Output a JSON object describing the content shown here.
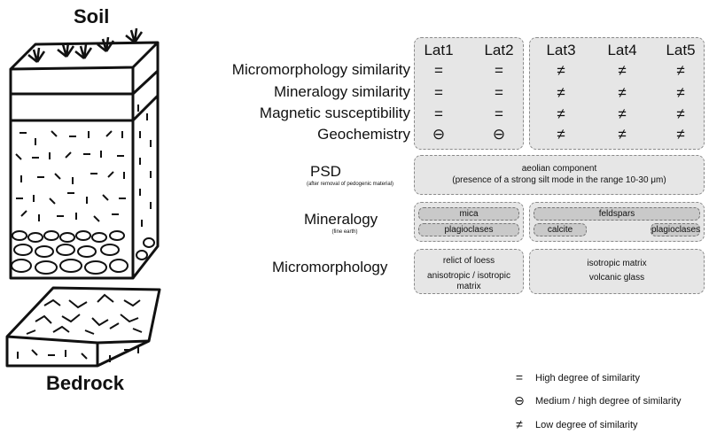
{
  "titles": {
    "soil": "Soil",
    "bedrock": "Bedrock"
  },
  "columns": [
    "Lat1",
    "Lat2",
    "Lat3",
    "Lat4",
    "Lat5"
  ],
  "rows": [
    {
      "label": "Micromorphology similarity",
      "values": [
        "=",
        "=",
        "≠",
        "≠",
        "≠"
      ]
    },
    {
      "label": "Mineralogy similarity",
      "values": [
        "=",
        "=",
        "≠",
        "≠",
        "≠"
      ]
    },
    {
      "label": "Magnetic susceptibility",
      "values": [
        "=",
        "=",
        "≠",
        "≠",
        "≠"
      ]
    },
    {
      "label": "Geochemistry",
      "values": [
        "⊖",
        "⊖",
        "≠",
        "≠",
        "≠"
      ]
    }
  ],
  "psd": {
    "label": "PSD",
    "sublabel": "(after removal of pedogenic material)",
    "text1": "aeolian component",
    "text2": "(presence of a strong silt mode in the range 10-30 μm)"
  },
  "mineralogy": {
    "label": "Mineralogy",
    "sublabel": "(fine earth)",
    "left": [
      "mica",
      "plagioclases"
    ],
    "right_top": "feldspars",
    "right_a": "calcite",
    "right_b": "plagioclases"
  },
  "micromorphology": {
    "label": "Micromorphology",
    "left1": "relict of loess",
    "left2": "anisotropic / isotropic",
    "left3": "matrix",
    "right1": "isotropic matrix",
    "right2": "volcanic glass"
  },
  "legend": [
    {
      "symbol": "=",
      "text": "High degree of similarity"
    },
    {
      "symbol": "⊖",
      "text": "Medium / high degree of similarity"
    },
    {
      "symbol": "≠",
      "text": "Low degree of similarity"
    }
  ]
}
